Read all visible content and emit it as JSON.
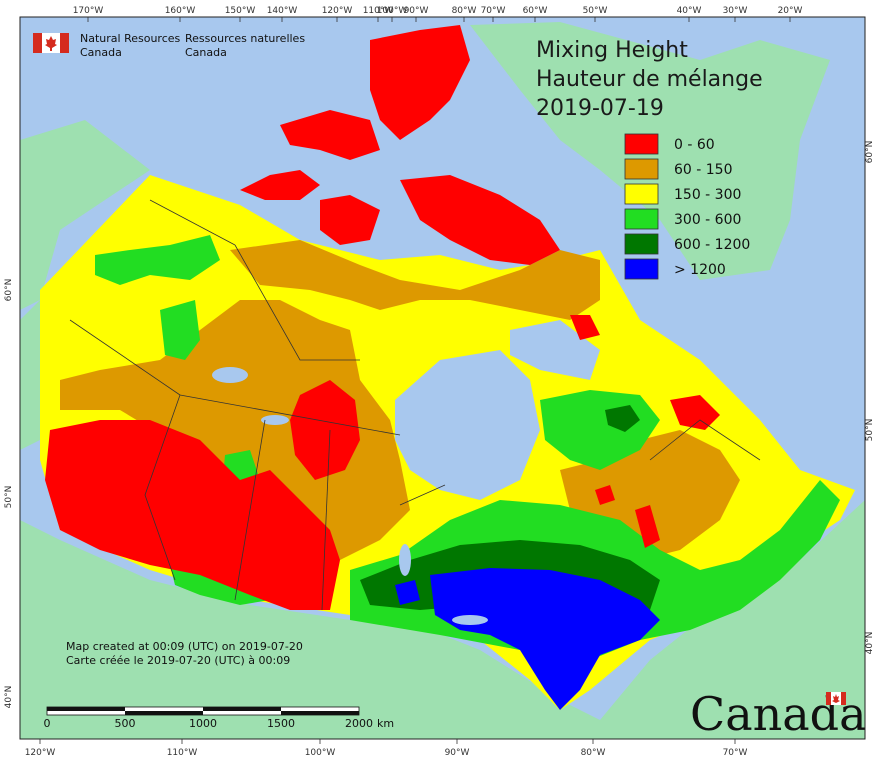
{
  "title": {
    "line1": "Mixing Height",
    "line2": "Hauteur de mélange",
    "date": "2019-07-19"
  },
  "agency": {
    "en_line1": "Natural Resources",
    "en_line2": "Canada",
    "fr_line1": "Ressources naturelles",
    "fr_line2": "Canada"
  },
  "legend": [
    {
      "label": "0 - 60",
      "color": "#ff0000"
    },
    {
      "label": "60 - 150",
      "color": "#dd9900"
    },
    {
      "label": "150 - 300",
      "color": "#ffff00"
    },
    {
      "label": "300 - 600",
      "color": "#22dd22"
    },
    {
      "label": "600 - 1200",
      "color": "#007700"
    },
    {
      "label": "> 1200",
      "color": "#0000ff"
    }
  ],
  "credits": {
    "en": "Map created at 00:09 (UTC) on 2019-07-20",
    "fr": "Carte créée le 2019-07-20 (UTC) à 00:09"
  },
  "scale": {
    "labels": [
      "0",
      "500",
      "1000",
      "1500",
      "2000"
    ],
    "unit": "km"
  },
  "wordmark": "Canada",
  "ticks": {
    "top": [
      "170°W",
      "160°W",
      "150°W",
      "140°W",
      "120°W",
      "110°W",
      "100°W",
      "90°W",
      "80°W",
      "70°W",
      "60°W",
      "50°W",
      "40°W",
      "30°W",
      "20°W"
    ],
    "bottom": [
      "120°W",
      "110°W",
      "100°W",
      "90°W",
      "80°W",
      "70°W"
    ],
    "left": [
      "60°N",
      "50°N",
      "40°N"
    ],
    "right": [
      "60°N",
      "50°N",
      "40°N"
    ]
  },
  "colors": {
    "ocean": "#a8c8ee",
    "land_other": "#9ee0b0",
    "border": "#333333"
  }
}
